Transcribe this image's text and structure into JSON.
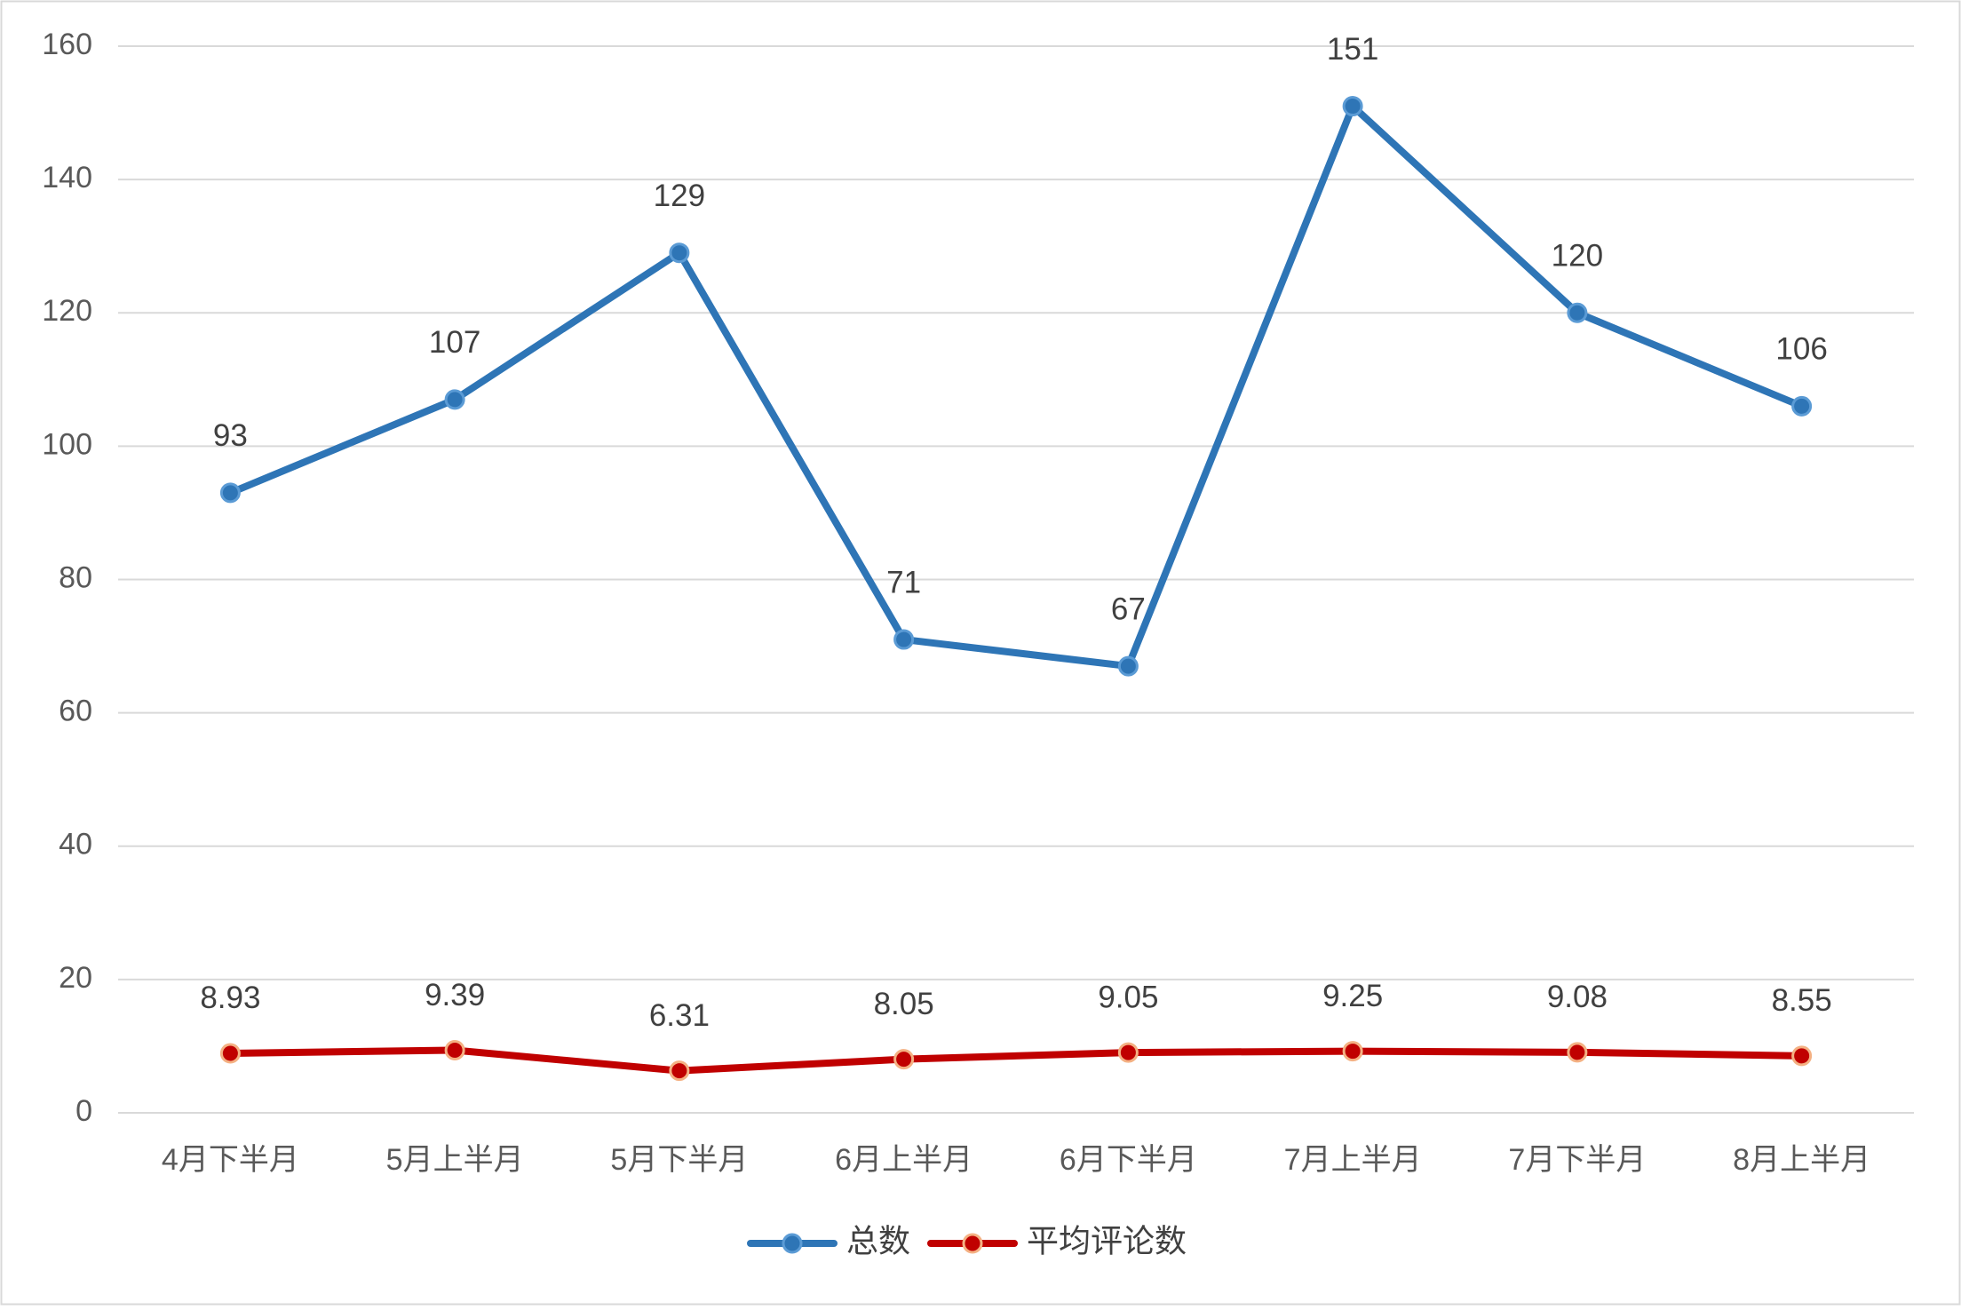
{
  "chart_data": {
    "type": "line",
    "title": "",
    "xlabel": "",
    "ylabel": "",
    "categories": [
      "4月下半月",
      "5月上半月",
      "5月下半月",
      "6月上半月",
      "6月下半月",
      "7月上半月",
      "7月下半月",
      "8月上半月"
    ],
    "ylim": [
      0,
      160
    ],
    "yticks": [
      0,
      20,
      40,
      60,
      80,
      100,
      120,
      140,
      160
    ],
    "grid": true,
    "legend_position": "bottom",
    "series": [
      {
        "name": "总数",
        "color": "#2E75B6",
        "values": [
          93,
          107,
          129,
          71,
          67,
          151,
          120,
          106
        ],
        "labels": [
          "93",
          "107",
          "129",
          "71",
          "67",
          "151",
          "120",
          "106"
        ]
      },
      {
        "name": "平均评论数",
        "color": "#C00000",
        "values": [
          8.93,
          9.39,
          6.31,
          8.05,
          9.05,
          9.25,
          9.08,
          8.55
        ],
        "labels": [
          "8.93",
          "9.39",
          "6.31",
          "8.05",
          "9.05",
          "9.25",
          "9.08",
          "8.55"
        ]
      }
    ]
  }
}
